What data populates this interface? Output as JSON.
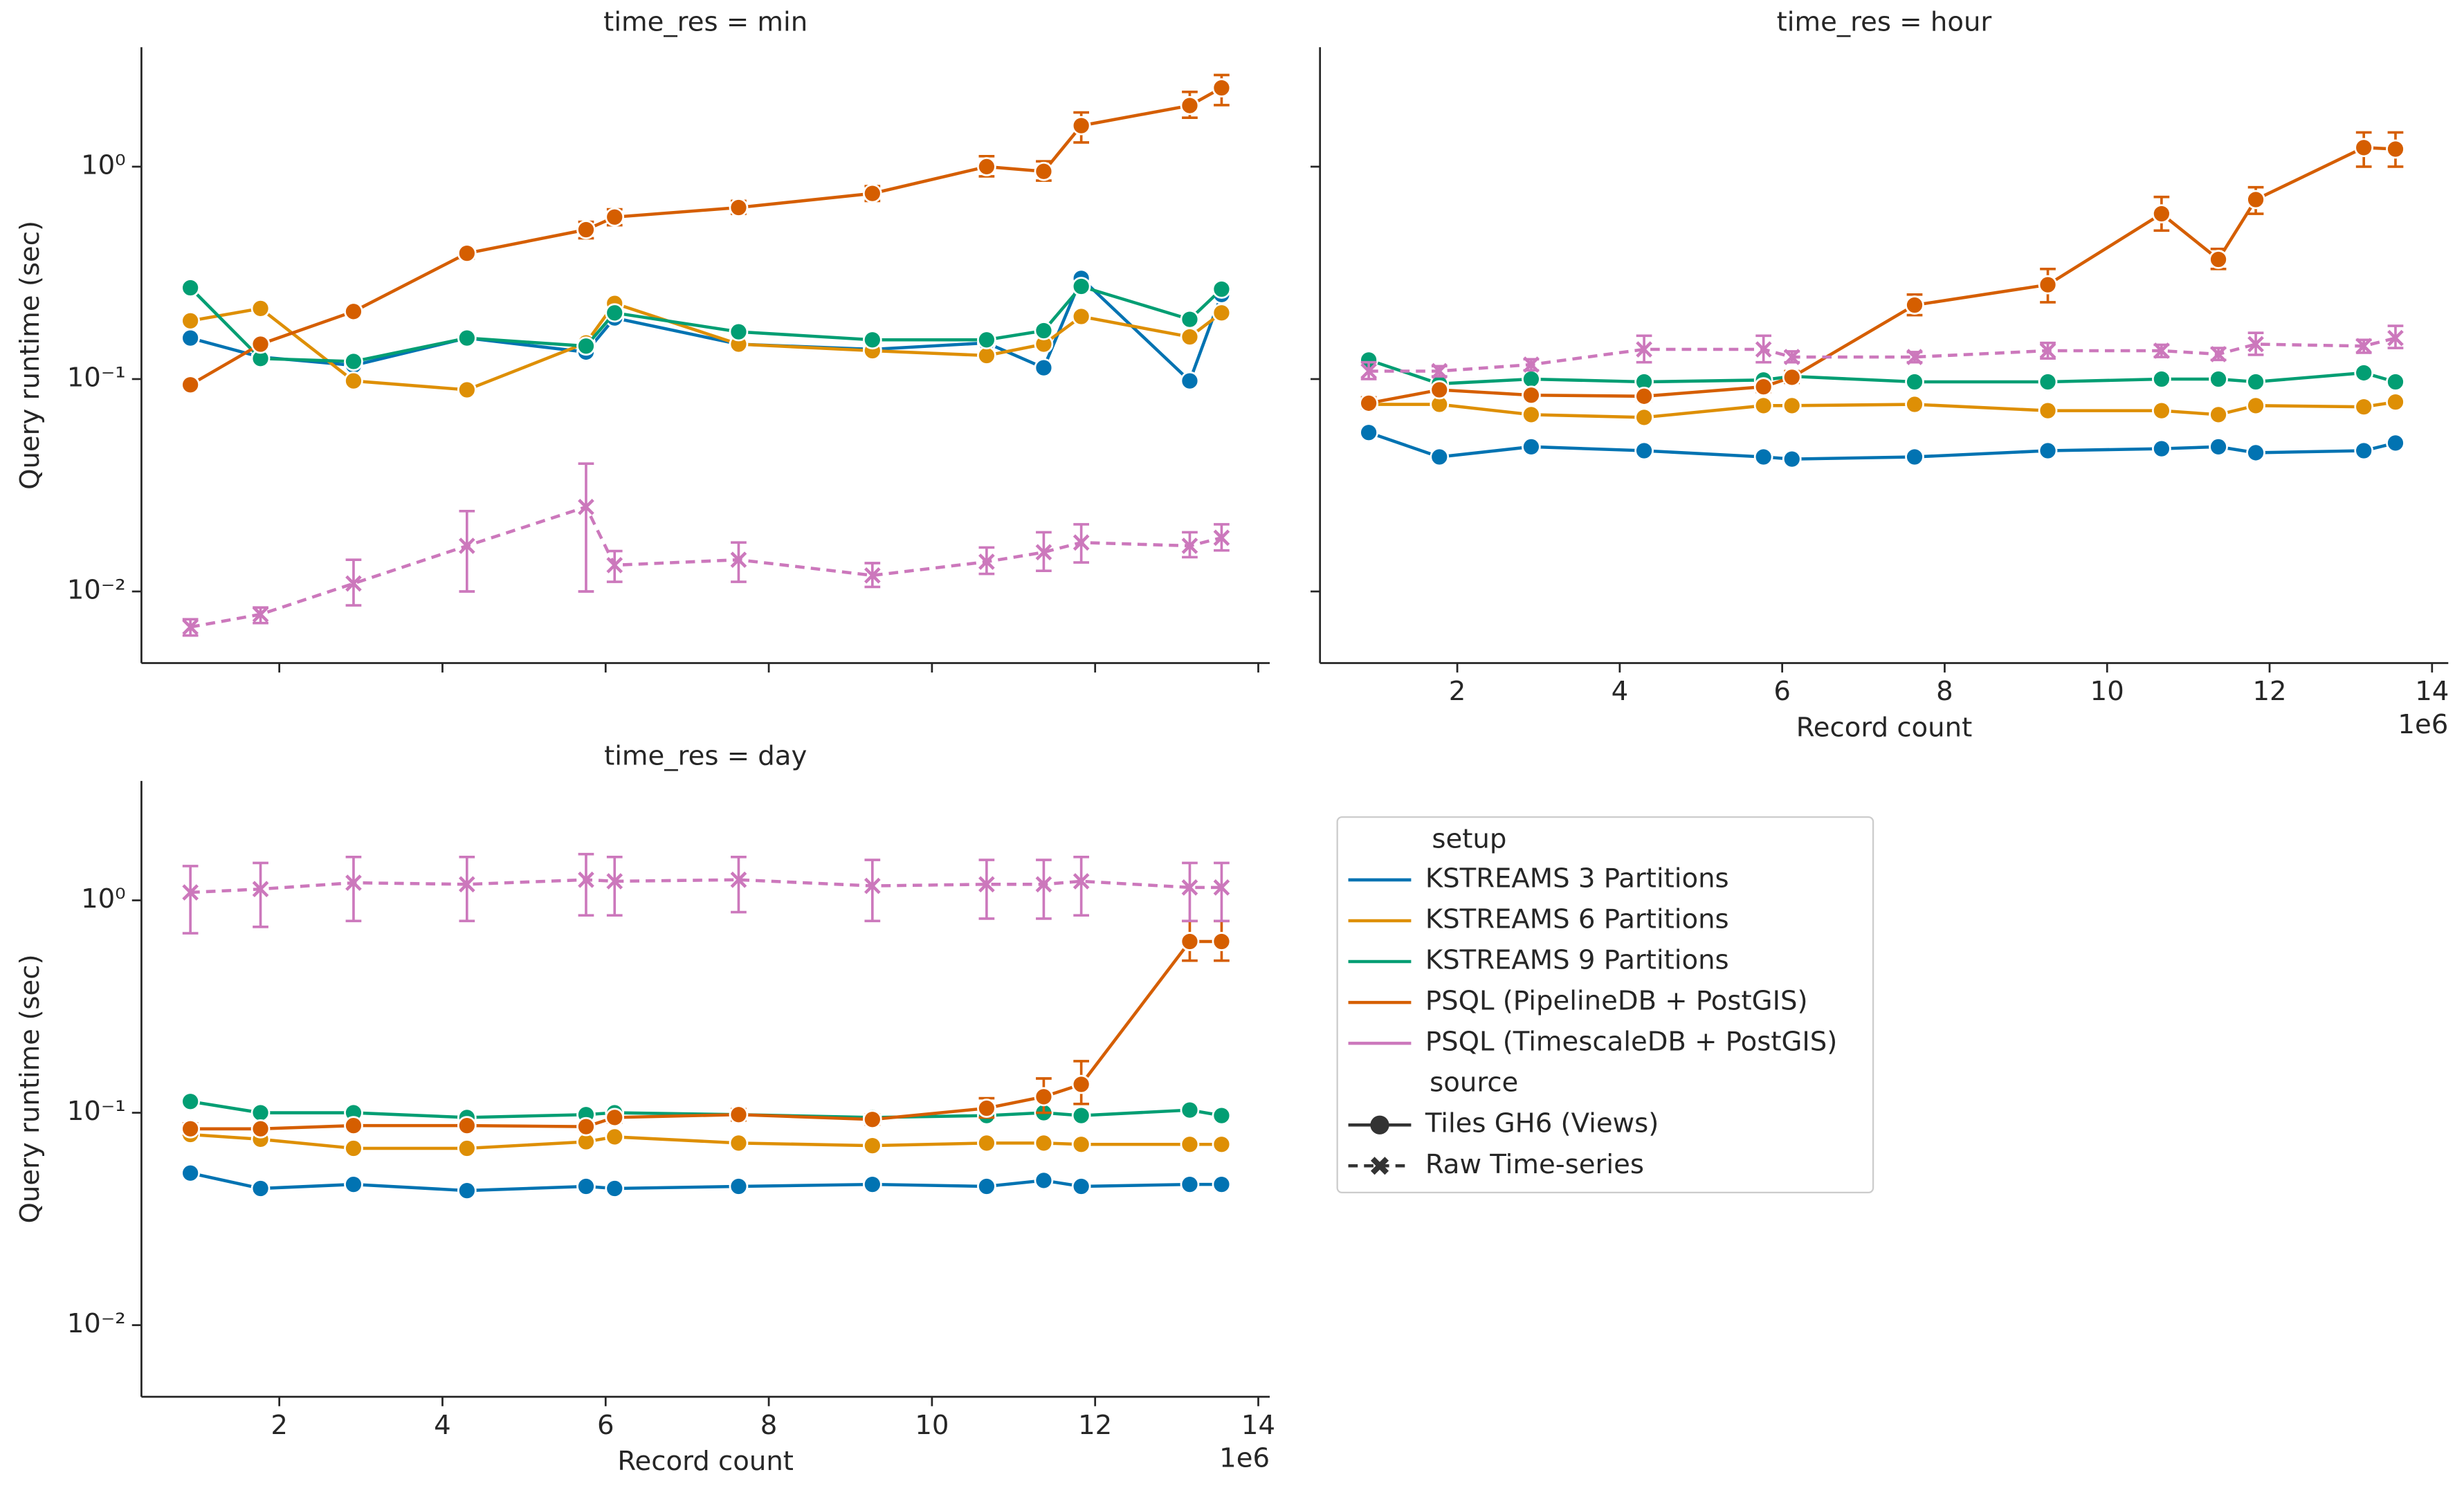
{
  "chart_data": [
    {
      "type": "line",
      "title": "time_res = min",
      "ylabel": "Query runtime (sec)",
      "log_y": true,
      "xtick_labels": false,
      "ytick_labels": true,
      "xlim": [
        0.31,
        14.14
      ],
      "xticks": [
        2,
        4,
        6,
        8,
        10,
        12,
        14
      ],
      "ylim": [
        0.0046,
        3.65
      ],
      "yticks": [
        {
          "value": 0.01,
          "label": "10⁻²"
        },
        {
          "value": 0.1,
          "label": "10⁻¹"
        },
        {
          "value": 1,
          "label": "10⁰"
        }
      ],
      "x": [
        0.91,
        1.77,
        2.91,
        4.3,
        5.76,
        6.11,
        7.63,
        9.27,
        10.67,
        11.37,
        11.83,
        13.16,
        13.55
      ],
      "series": [
        {
          "name": "KSTREAMS 3 Partitions",
          "color": "#0173b2",
          "marker": "circle",
          "dashed": false,
          "values": [
            0.156,
            0.127,
            0.116,
            0.156,
            0.134,
            0.194,
            0.146,
            0.138,
            0.148,
            0.113,
            0.298,
            0.098,
            0.25
          ]
        },
        {
          "name": "KSTREAMS 6 Partitions",
          "color": "#de8f05",
          "marker": "circle",
          "dashed": false,
          "values": [
            0.188,
            0.215,
            0.098,
            0.089,
            0.148,
            0.227,
            0.146,
            0.136,
            0.129,
            0.146,
            0.197,
            0.158,
            0.205
          ]
        },
        {
          "name": "KSTREAMS 9 Partitions",
          "color": "#029e73",
          "marker": "circle",
          "dashed": false,
          "values": [
            0.269,
            0.125,
            0.121,
            0.156,
            0.143,
            0.205,
            0.167,
            0.153,
            0.153,
            0.169,
            0.273,
            0.191,
            0.265
          ]
        },
        {
          "name": "PSQL (PipelineDB + PostGIS)",
          "color": "#d55e00",
          "marker": "circle",
          "dashed": false,
          "values": [
            0.094,
            0.146,
            0.208,
            0.391,
            0.505,
            0.579,
            0.642,
            0.748,
            1.0,
            0.95,
            1.56,
            1.94,
            2.35
          ],
          "ci_low": [
            0.09,
            0.14,
            0.2,
            0.37,
            0.46,
            0.53,
            0.6,
            0.69,
            0.9,
            0.86,
            1.3,
            1.7,
            1.95
          ],
          "ci_high": [
            0.097,
            0.15,
            0.215,
            0.41,
            0.55,
            0.63,
            0.69,
            0.81,
            1.12,
            1.06,
            1.8,
            2.25,
            2.7
          ]
        },
        {
          "name": "PSQL (TimescaleDB + PostGIS)",
          "color": "#cc78bc",
          "marker": "x",
          "dashed": true,
          "values": [
            0.0068,
            0.0078,
            0.0109,
            0.0164,
            0.025,
            0.0133,
            0.0141,
            0.0119,
            0.0138,
            0.0153,
            0.017,
            0.0164,
            0.0179
          ],
          "ci_low": [
            0.0062,
            0.0071,
            0.0086,
            0.01,
            0.01,
            0.0111,
            0.0111,
            0.0105,
            0.0121,
            0.0125,
            0.0137,
            0.0145,
            0.0156
          ],
          "ci_high": [
            0.0074,
            0.0084,
            0.0141,
            0.0239,
            0.04,
            0.0155,
            0.017,
            0.0136,
            0.0161,
            0.019,
            0.0207,
            0.019,
            0.0207
          ]
        }
      ]
    },
    {
      "type": "line",
      "title": "time_res = hour",
      "xlabel": "Record count",
      "x_offset_label": "1e6",
      "log_y": true,
      "xtick_labels": true,
      "ytick_labels": false,
      "xlim": [
        0.31,
        14.2
      ],
      "xticks": [
        2,
        4,
        6,
        8,
        10,
        12,
        14
      ],
      "ylim": [
        0.0046,
        3.65
      ],
      "yticks": [
        0.01,
        0.1,
        1
      ],
      "x": [
        0.91,
        1.78,
        2.91,
        4.3,
        5.77,
        6.12,
        7.63,
        9.27,
        10.67,
        11.37,
        11.83,
        13.16,
        13.55
      ],
      "series": [
        {
          "name": "KSTREAMS 3 Partitions",
          "color": "#0173b2",
          "marker": "circle",
          "dashed": false,
          "values": [
            0.056,
            0.043,
            0.048,
            0.046,
            0.043,
            0.042,
            0.043,
            0.046,
            0.047,
            0.048,
            0.045,
            0.046,
            0.05
          ]
        },
        {
          "name": "KSTREAMS 6 Partitions",
          "color": "#de8f05",
          "marker": "circle",
          "dashed": false,
          "values": [
            0.076,
            0.076,
            0.068,
            0.066,
            0.075,
            0.075,
            0.076,
            0.071,
            0.071,
            0.068,
            0.075,
            0.074,
            0.078
          ]
        },
        {
          "name": "KSTREAMS 9 Partitions",
          "color": "#029e73",
          "marker": "circle",
          "dashed": false,
          "values": [
            0.123,
            0.095,
            0.1,
            0.097,
            0.099,
            0.103,
            0.097,
            0.097,
            0.1,
            0.1,
            0.097,
            0.107,
            0.097
          ]
        },
        {
          "name": "PSQL (PipelineDB + PostGIS)",
          "color": "#d55e00",
          "marker": "circle",
          "dashed": false,
          "values": [
            0.077,
            0.089,
            0.084,
            0.083,
            0.092,
            0.102,
            0.223,
            0.278,
            0.6,
            0.366,
            0.7,
            1.23,
            1.21
          ],
          "ci_low": [
            0.073,
            0.085,
            0.08,
            0.079,
            0.087,
            0.096,
            0.2,
            0.23,
            0.5,
            0.33,
            0.6,
            1.0,
            1.0
          ],
          "ci_high": [
            0.082,
            0.094,
            0.088,
            0.087,
            0.097,
            0.109,
            0.25,
            0.33,
            0.72,
            0.41,
            0.8,
            1.45,
            1.45
          ]
        },
        {
          "name": "PSQL (TimescaleDB + PostGIS)",
          "color": "#cc78bc",
          "marker": "x",
          "dashed": true,
          "values": [
            0.109,
            0.109,
            0.117,
            0.138,
            0.138,
            0.127,
            0.127,
            0.136,
            0.136,
            0.131,
            0.146,
            0.143,
            0.156
          ],
          "ci_low": [
            0.1,
            0.103,
            0.11,
            0.12,
            0.12,
            0.12,
            0.12,
            0.125,
            0.127,
            0.123,
            0.13,
            0.133,
            0.14
          ],
          "ci_high": [
            0.12,
            0.115,
            0.124,
            0.16,
            0.16,
            0.135,
            0.134,
            0.148,
            0.145,
            0.14,
            0.165,
            0.153,
            0.178
          ]
        }
      ]
    },
    {
      "type": "line",
      "title": "time_res = day",
      "xlabel": "Record count",
      "x_offset_label": "1e6",
      "ylabel": "Query runtime (sec)",
      "log_y": true,
      "xtick_labels": true,
      "ytick_labels": true,
      "xlim": [
        0.31,
        14.14
      ],
      "xticks": [
        2,
        4,
        6,
        8,
        10,
        12,
        14
      ],
      "ylim": [
        0.0046,
        3.65
      ],
      "yticks": [
        {
          "value": 0.01,
          "label": "10⁻²"
        },
        {
          "value": 0.1,
          "label": "10⁻¹"
        },
        {
          "value": 1,
          "label": "10⁰"
        }
      ],
      "x": [
        0.91,
        1.77,
        2.91,
        4.3,
        5.76,
        6.11,
        7.63,
        9.27,
        10.67,
        11.37,
        11.83,
        13.16,
        13.55
      ],
      "series": [
        {
          "name": "KSTREAMS 3 Partitions",
          "color": "#0173b2",
          "marker": "circle",
          "dashed": false,
          "values": [
            0.052,
            0.044,
            0.046,
            0.043,
            0.045,
            0.044,
            0.045,
            0.046,
            0.045,
            0.048,
            0.045,
            0.046,
            0.046
          ]
        },
        {
          "name": "KSTREAMS 6 Partitions",
          "color": "#de8f05",
          "marker": "circle",
          "dashed": false,
          "values": [
            0.079,
            0.075,
            0.068,
            0.068,
            0.073,
            0.077,
            0.072,
            0.07,
            0.072,
            0.072,
            0.071,
            0.071,
            0.071
          ]
        },
        {
          "name": "KSTREAMS 9 Partitions",
          "color": "#029e73",
          "marker": "circle",
          "dashed": false,
          "values": [
            0.113,
            0.1,
            0.1,
            0.095,
            0.098,
            0.1,
            0.098,
            0.095,
            0.097,
            0.1,
            0.097,
            0.103,
            0.097
          ]
        },
        {
          "name": "PSQL (PipelineDB + PostGIS)",
          "color": "#d55e00",
          "marker": "circle",
          "dashed": false,
          "values": [
            0.084,
            0.084,
            0.087,
            0.087,
            0.086,
            0.095,
            0.098,
            0.093,
            0.105,
            0.119,
            0.136,
            0.64,
            0.64
          ],
          "ci_low": [
            0.079,
            0.08,
            0.083,
            0.083,
            0.082,
            0.09,
            0.092,
            0.088,
            0.095,
            0.1,
            0.11,
            0.52,
            0.52
          ],
          "ci_high": [
            0.089,
            0.088,
            0.091,
            0.091,
            0.09,
            0.1,
            0.104,
            0.098,
            0.117,
            0.145,
            0.175,
            0.8,
            0.8
          ]
        },
        {
          "name": "PSQL (TimescaleDB + PostGIS)",
          "color": "#cc78bc",
          "marker": "x",
          "dashed": true,
          "values": [
            1.09,
            1.13,
            1.21,
            1.19,
            1.25,
            1.23,
            1.25,
            1.17,
            1.19,
            1.19,
            1.23,
            1.15,
            1.15
          ],
          "ci_low": [
            0.7,
            0.75,
            0.8,
            0.8,
            0.85,
            0.85,
            0.88,
            0.8,
            0.82,
            0.82,
            0.85,
            0.8,
            0.8
          ],
          "ci_high": [
            1.45,
            1.5,
            1.6,
            1.6,
            1.65,
            1.6,
            1.6,
            1.55,
            1.55,
            1.55,
            1.6,
            1.5,
            1.5
          ]
        }
      ]
    }
  ],
  "legend": {
    "setup_title": "setup",
    "source_title": "source",
    "line_color": "#333333",
    "sources": [
      {
        "name": "Tiles GH6 (Views)",
        "marker": "circle",
        "dashed": false
      },
      {
        "name": "Raw Time-series",
        "marker": "x",
        "dashed": true
      }
    ]
  }
}
